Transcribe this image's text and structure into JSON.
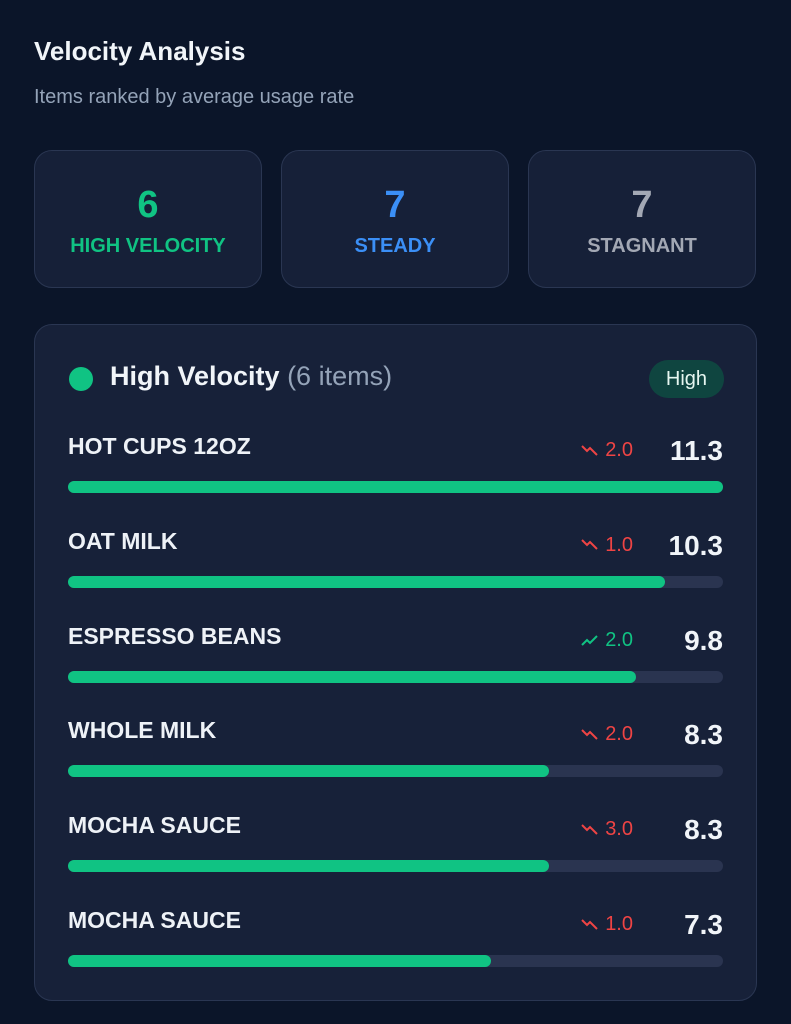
{
  "header": {
    "title": "Velocity Analysis",
    "subtitle": "Items ranked by average usage rate"
  },
  "stats": [
    {
      "value": 6,
      "label": "HIGH VELOCITY",
      "color": "#10c383"
    },
    {
      "value": 7,
      "label": "STEADY",
      "color": "#3b8ff6"
    },
    {
      "value": 7,
      "label": "STAGNANT",
      "color": "#a3a8b4"
    }
  ],
  "section": {
    "title": "High Velocity",
    "count": "(6 items)",
    "badge": "High",
    "color": "#10c383",
    "items": [
      {
        "name": "HOT CUPS 12OZ",
        "trend": "2.0",
        "direction": "down",
        "rate": 11.3
      },
      {
        "name": "OAT MILK",
        "trend": "1.0",
        "direction": "down",
        "rate": 10.3
      },
      {
        "name": "ESPRESSO BEANS",
        "trend": "2.0",
        "direction": "up",
        "rate": 9.8
      },
      {
        "name": "WHOLE MILK",
        "trend": "2.0",
        "direction": "down",
        "rate": 8.3
      },
      {
        "name": "MOCHA SAUCE",
        "trend": "3.0",
        "direction": "down",
        "rate": 8.3
      },
      {
        "name": "MOCHA SAUCE",
        "trend": "1.0",
        "direction": "down",
        "rate": 7.3
      }
    ]
  }
}
